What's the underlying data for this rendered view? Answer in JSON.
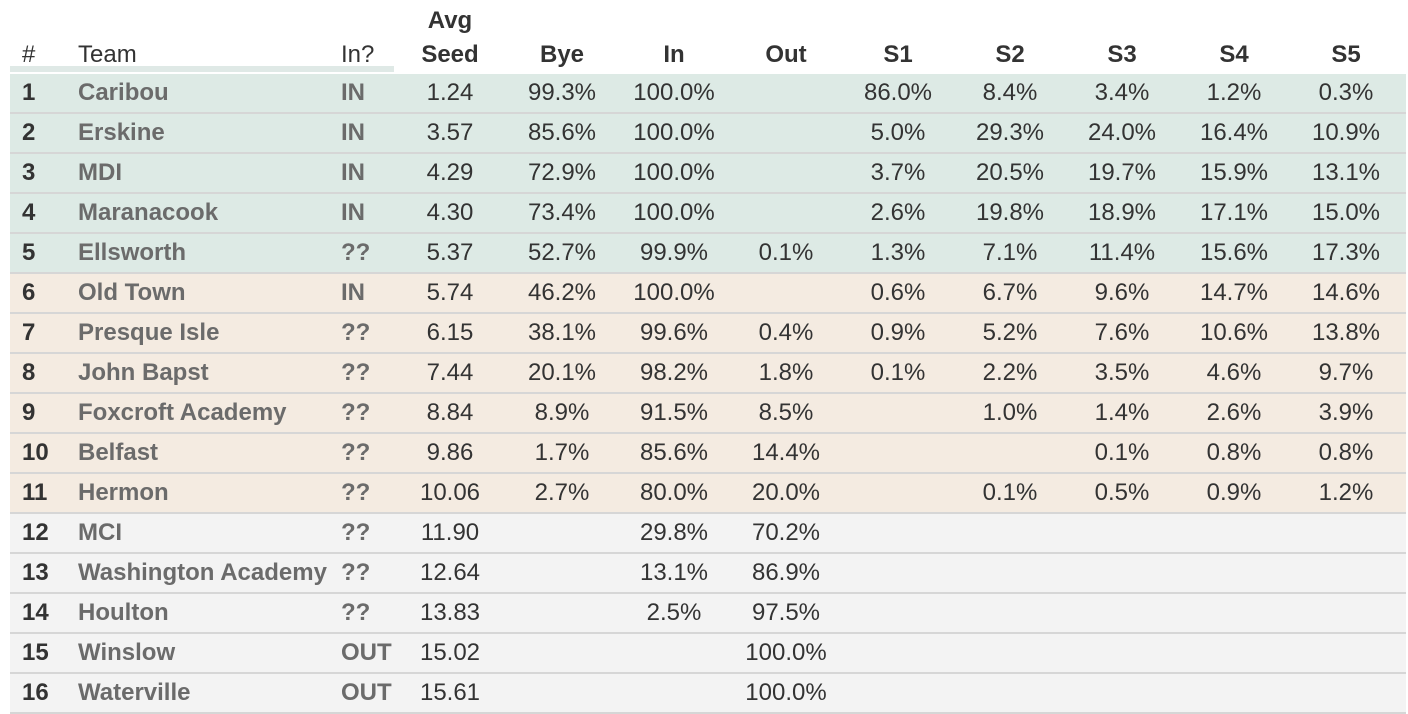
{
  "headers": {
    "rank": "#",
    "team": "Team",
    "in_status": "In?",
    "avg_seed_line1": "Avg",
    "avg_seed_line2": "Seed",
    "bye": "Bye",
    "in": "In",
    "out": "Out",
    "s1": "S1",
    "s2": "S2",
    "s3": "S3",
    "s4": "S4",
    "s5": "S5"
  },
  "colors": {
    "tier_in": "#ddeae5",
    "tier_bubble": "#f4ebe1",
    "tier_out": "#f3f3f3",
    "team_text": "#6b6b6b",
    "body_text": "#333333"
  },
  "rows": [
    {
      "rank": "1",
      "team": "Caribou",
      "status": "IN",
      "avg_seed": "1.24",
      "bye": "99.3%",
      "in": "100.0%",
      "out": "",
      "s1": "86.0%",
      "s2": "8.4%",
      "s3": "3.4%",
      "s4": "1.2%",
      "s5": "0.3%",
      "tier": "in"
    },
    {
      "rank": "2",
      "team": "Erskine",
      "status": "IN",
      "avg_seed": "3.57",
      "bye": "85.6%",
      "in": "100.0%",
      "out": "",
      "s1": "5.0%",
      "s2": "29.3%",
      "s3": "24.0%",
      "s4": "16.4%",
      "s5": "10.9%",
      "tier": "in"
    },
    {
      "rank": "3",
      "team": "MDI",
      "status": "IN",
      "avg_seed": "4.29",
      "bye": "72.9%",
      "in": "100.0%",
      "out": "",
      "s1": "3.7%",
      "s2": "20.5%",
      "s3": "19.7%",
      "s4": "15.9%",
      "s5": "13.1%",
      "tier": "in"
    },
    {
      "rank": "4",
      "team": "Maranacook",
      "status": "IN",
      "avg_seed": "4.30",
      "bye": "73.4%",
      "in": "100.0%",
      "out": "",
      "s1": "2.6%",
      "s2": "19.8%",
      "s3": "18.9%",
      "s4": "17.1%",
      "s5": "15.0%",
      "tier": "in"
    },
    {
      "rank": "5",
      "team": "Ellsworth",
      "status": "??",
      "avg_seed": "5.37",
      "bye": "52.7%",
      "in": "99.9%",
      "out": "0.1%",
      "s1": "1.3%",
      "s2": "7.1%",
      "s3": "11.4%",
      "s4": "15.6%",
      "s5": "17.3%",
      "tier": "in"
    },
    {
      "rank": "6",
      "team": "Old Town",
      "status": "IN",
      "avg_seed": "5.74",
      "bye": "46.2%",
      "in": "100.0%",
      "out": "",
      "s1": "0.6%",
      "s2": "6.7%",
      "s3": "9.6%",
      "s4": "14.7%",
      "s5": "14.6%",
      "tier": "bubble"
    },
    {
      "rank": "7",
      "team": "Presque Isle",
      "status": "??",
      "avg_seed": "6.15",
      "bye": "38.1%",
      "in": "99.6%",
      "out": "0.4%",
      "s1": "0.9%",
      "s2": "5.2%",
      "s3": "7.6%",
      "s4": "10.6%",
      "s5": "13.8%",
      "tier": "bubble"
    },
    {
      "rank": "8",
      "team": "John Bapst",
      "status": "??",
      "avg_seed": "7.44",
      "bye": "20.1%",
      "in": "98.2%",
      "out": "1.8%",
      "s1": "0.1%",
      "s2": "2.2%",
      "s3": "3.5%",
      "s4": "4.6%",
      "s5": "9.7%",
      "tier": "bubble"
    },
    {
      "rank": "9",
      "team": "Foxcroft Academy",
      "status": "??",
      "avg_seed": "8.84",
      "bye": "8.9%",
      "in": "91.5%",
      "out": "8.5%",
      "s1": "",
      "s2": "1.0%",
      "s3": "1.4%",
      "s4": "2.6%",
      "s5": "3.9%",
      "tier": "bubble"
    },
    {
      "rank": "10",
      "team": "Belfast",
      "status": "??",
      "avg_seed": "9.86",
      "bye": "1.7%",
      "in": "85.6%",
      "out": "14.4%",
      "s1": "",
      "s2": "",
      "s3": "0.1%",
      "s4": "0.8%",
      "s5": "0.8%",
      "tier": "bubble"
    },
    {
      "rank": "11",
      "team": "Hermon",
      "status": "??",
      "avg_seed": "10.06",
      "bye": "2.7%",
      "in": "80.0%",
      "out": "20.0%",
      "s1": "",
      "s2": "0.1%",
      "s3": "0.5%",
      "s4": "0.9%",
      "s5": "1.2%",
      "tier": "bubble"
    },
    {
      "rank": "12",
      "team": "MCI",
      "status": "??",
      "avg_seed": "11.90",
      "bye": "",
      "in": "29.8%",
      "out": "70.2%",
      "s1": "",
      "s2": "",
      "s3": "",
      "s4": "",
      "s5": "",
      "tier": "out"
    },
    {
      "rank": "13",
      "team": "Washington Academy",
      "status": "??",
      "avg_seed": "12.64",
      "bye": "",
      "in": "13.1%",
      "out": "86.9%",
      "s1": "",
      "s2": "",
      "s3": "",
      "s4": "",
      "s5": "",
      "tier": "out"
    },
    {
      "rank": "14",
      "team": "Houlton",
      "status": "??",
      "avg_seed": "13.83",
      "bye": "",
      "in": "2.5%",
      "out": "97.5%",
      "s1": "",
      "s2": "",
      "s3": "",
      "s4": "",
      "s5": "",
      "tier": "out"
    },
    {
      "rank": "15",
      "team": "Winslow",
      "status": "OUT",
      "avg_seed": "15.02",
      "bye": "",
      "in": "",
      "out": "100.0%",
      "s1": "",
      "s2": "",
      "s3": "",
      "s4": "",
      "s5": "",
      "tier": "out"
    },
    {
      "rank": "16",
      "team": "Waterville",
      "status": "OUT",
      "avg_seed": "15.61",
      "bye": "",
      "in": "",
      "out": "100.0%",
      "s1": "",
      "s2": "",
      "s3": "",
      "s4": "",
      "s5": "",
      "tier": "out"
    }
  ]
}
